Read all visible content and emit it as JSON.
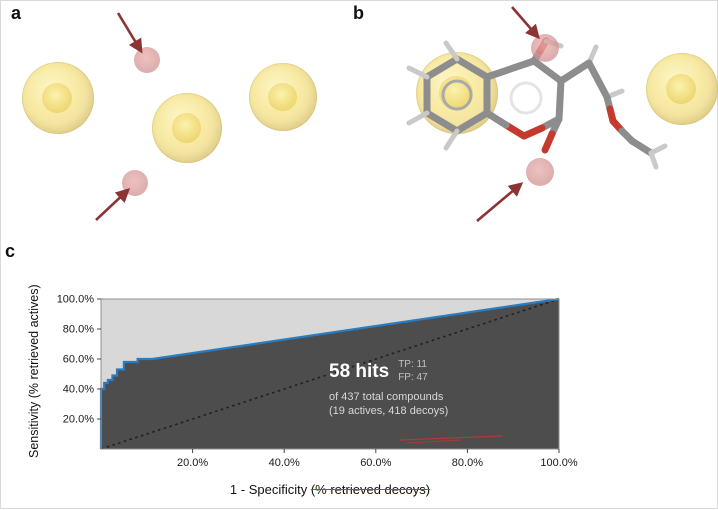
{
  "figure": {
    "panels": {
      "a": {
        "label": "a"
      },
      "b": {
        "label": "b"
      },
      "c": {
        "label": "c"
      }
    },
    "colors": {
      "hydrophobic_feature": "#f2e187",
      "hbond_feature": "#d79090",
      "annotation_arrow": "#8c3333",
      "oxygen_red": "#c43a2e",
      "carbon_gray": "#8d8d8d"
    }
  },
  "chart_data": {
    "type": "line",
    "title": "",
    "xlabel": "1 - Specificity (% retrieved decoys)",
    "xlabel_main": "1 - Specificity ",
    "xlabel_struck": "(% retrieved decoys)",
    "ylabel": "Sensitivity (% retrieved actives)",
    "xlim": [
      0,
      100
    ],
    "ylim": [
      0,
      100
    ],
    "grid": false,
    "legend": "none",
    "plot_bg": "#d8d8d8",
    "area_under_curve_color": "#4d4d4d",
    "xticks": [
      {
        "v": 20,
        "label": "20.0%"
      },
      {
        "v": 40,
        "label": "40.0%"
      },
      {
        "v": 60,
        "label": "60.0%"
      },
      {
        "v": 80,
        "label": "80.0%"
      },
      {
        "v": 100,
        "label": "100.0%"
      }
    ],
    "yticks": [
      {
        "v": 20,
        "label": "20.0%"
      },
      {
        "v": 40,
        "label": "40.0%"
      },
      {
        "v": 60,
        "label": "60.0%"
      },
      {
        "v": 80,
        "label": "80.0%"
      },
      {
        "v": 100,
        "label": "100.0%"
      }
    ],
    "series": [
      {
        "name": "roc_curve",
        "color": "#2b7bbf",
        "points": [
          [
            0,
            0
          ],
          [
            0,
            40
          ],
          [
            0.7,
            40
          ],
          [
            0.7,
            44
          ],
          [
            1.5,
            44
          ],
          [
            1.5,
            46
          ],
          [
            2.5,
            46
          ],
          [
            2.5,
            49
          ],
          [
            3.5,
            49
          ],
          [
            3.5,
            53
          ],
          [
            5,
            53
          ],
          [
            5,
            58
          ],
          [
            8,
            58
          ],
          [
            8,
            60
          ],
          [
            11.2,
            60
          ],
          [
            100,
            100
          ]
        ]
      },
      {
        "name": "reference_diagonal",
        "color": "#1f1f1f",
        "style": "dotted",
        "points": [
          [
            0,
            0
          ],
          [
            100,
            100
          ]
        ]
      }
    ],
    "annotation": {
      "hits": "58 hits",
      "tp": "TP: 11",
      "fp": "FP: 47",
      "line1": "of 437 total compounds",
      "line2": "(19 actives, 418 decoys)"
    }
  }
}
